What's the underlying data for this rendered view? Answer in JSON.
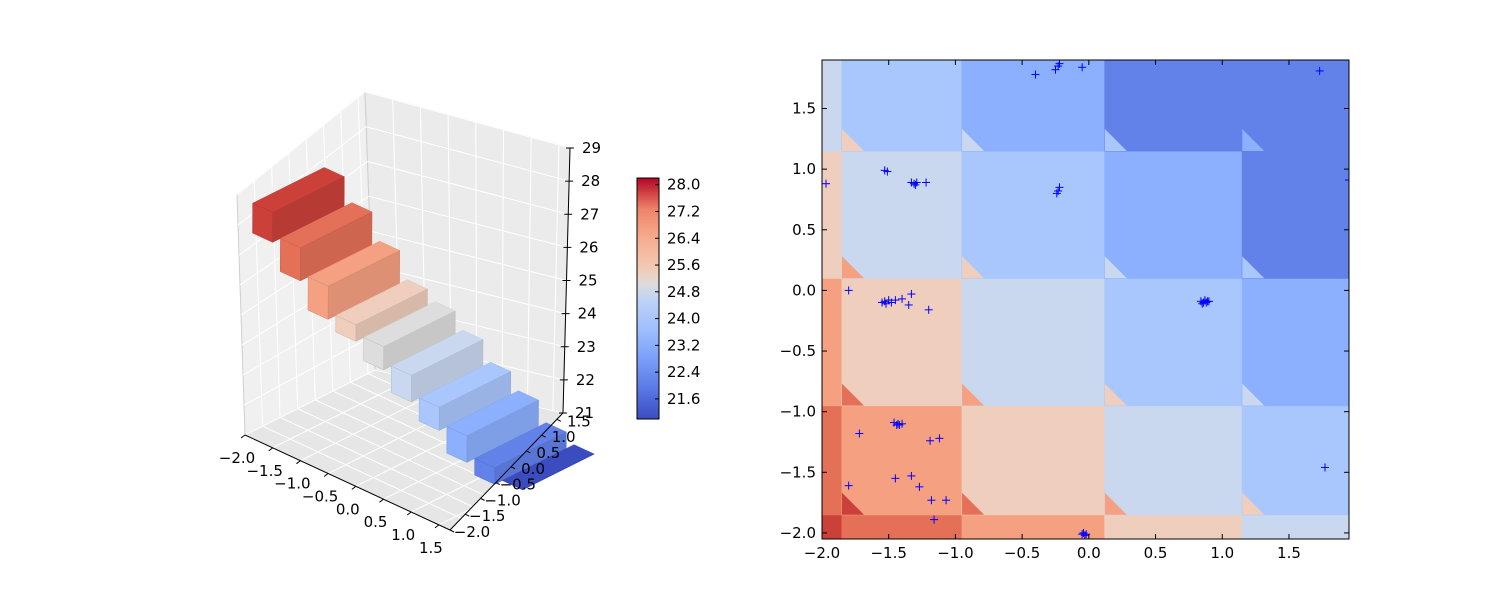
{
  "chart_data": [
    {
      "type": "surface3d",
      "title": "",
      "xlabel": "",
      "ylabel": "",
      "zlabel": "",
      "x_ticks": [
        "−2.0",
        "−1.5",
        "−1.0",
        "−0.5",
        "0.0",
        "0.5",
        "1.0",
        "1.5"
      ],
      "y_ticks": [
        "−2.0",
        "−1.5",
        "−1.0",
        "−0.5",
        "0.0",
        "0.5",
        "1.0",
        "1.5"
      ],
      "z_ticks": [
        "21",
        "22",
        "23",
        "24",
        "25",
        "26",
        "27",
        "28",
        "29"
      ],
      "zlim": [
        21,
        29
      ],
      "colormap": "coolwarm",
      "colorbar": {
        "ticks": [
          "28.0",
          "27.2",
          "26.4",
          "25.6",
          "24.8",
          "24.0",
          "23.2",
          "22.4",
          "21.6"
        ],
        "range": [
          21.0,
          28.2
        ]
      },
      "step_levels": [
        {
          "z": 27.9,
          "color": "#cc403a"
        },
        {
          "z": 27.0,
          "color": "#e57058"
        },
        {
          "z": 26.0,
          "color": "#f5a081"
        },
        {
          "z": 25.0,
          "color": "#efcebd"
        },
        {
          "z": 24.5,
          "color": "#dddddd"
        },
        {
          "z": 23.8,
          "color": "#cad8ef"
        },
        {
          "z": 23.0,
          "color": "#aac7fd"
        },
        {
          "z": 22.3,
          "color": "#8caffe"
        },
        {
          "z": 21.5,
          "color": "#6282ea"
        },
        {
          "z": 21.0,
          "color": "#3b4cc0"
        }
      ]
    },
    {
      "type": "heatmap",
      "title": "",
      "xlabel": "",
      "ylabel": "",
      "xlim": [
        -2.0,
        1.95
      ],
      "ylim": [
        -2.05,
        1.9
      ],
      "x_ticks": [
        "−2.0",
        "−1.5",
        "−1.0",
        "−0.5",
        "0.0",
        "0.5",
        "1.0",
        "1.5"
      ],
      "y_ticks": [
        "−2.0",
        "−1.5",
        "−1.0",
        "−0.5",
        "0.0",
        "0.5",
        "1.0",
        "1.5"
      ],
      "x_edges": [
        -2.0,
        -1.85,
        -0.95,
        0.12,
        1.15,
        1.95
      ],
      "y_edges": [
        -2.05,
        -1.85,
        -0.95,
        0.1,
        1.15,
        1.9
      ],
      "region_colors": [
        [
          "#cc403a",
          "#e57058",
          "#f5a081",
          "#efcebd",
          "#cad8ef"
        ],
        [
          "#e57058",
          "#f5a081",
          "#efcebd",
          "#cad8ef",
          "#aac7fd"
        ],
        [
          "#f5a081",
          "#efcebd",
          "#cad8ef",
          "#aac7fd",
          "#8caffe"
        ],
        [
          "#efcebd",
          "#cad8ef",
          "#aac7fd",
          "#8caffe",
          "#6282ea"
        ],
        [
          "#cad8ef",
          "#aac7fd",
          "#8caffe",
          "#6282ea",
          "#6282ea"
        ]
      ],
      "marker_color": "#0000ff",
      "points": [
        [
          -0.4,
          1.78
        ],
        [
          -0.25,
          1.82
        ],
        [
          -0.23,
          1.85
        ],
        [
          -0.22,
          1.87
        ],
        [
          -0.05,
          1.84
        ],
        [
          1.73,
          1.81
        ],
        [
          -1.53,
          0.99
        ],
        [
          -1.51,
          0.98
        ],
        [
          -1.33,
          0.89
        ],
        [
          -1.31,
          0.88
        ],
        [
          -1.29,
          0.89
        ],
        [
          -1.3,
          0.87
        ],
        [
          -1.22,
          0.89
        ],
        [
          -0.24,
          0.8
        ],
        [
          -0.23,
          0.82
        ],
        [
          -0.22,
          0.85
        ],
        [
          -1.97,
          0.88
        ],
        [
          1.95,
          0.91
        ],
        [
          -1.8,
          0.0
        ],
        [
          -1.55,
          -0.1
        ],
        [
          -1.53,
          -0.09
        ],
        [
          -1.52,
          -0.11
        ],
        [
          -1.5,
          -0.08
        ],
        [
          -1.48,
          -0.1
        ],
        [
          -1.45,
          -0.08
        ],
        [
          -1.4,
          -0.07
        ],
        [
          -1.35,
          -0.12
        ],
        [
          -1.33,
          -0.03
        ],
        [
          -1.2,
          -0.16
        ],
        [
          0.84,
          -0.09
        ],
        [
          0.86,
          -0.1
        ],
        [
          0.87,
          -0.08
        ],
        [
          0.88,
          -0.1
        ],
        [
          0.89,
          -0.09
        ],
        [
          0.9,
          -0.09
        ],
        [
          0.85,
          -0.11
        ],
        [
          -1.46,
          -1.09
        ],
        [
          -1.44,
          -1.11
        ],
        [
          -1.43,
          -1.1
        ],
        [
          -1.42,
          -1.11
        ],
        [
          -1.4,
          -1.1
        ],
        [
          -1.72,
          -1.18
        ],
        [
          -1.19,
          -1.24
        ],
        [
          -1.12,
          -1.22
        ],
        [
          -1.8,
          -1.61
        ],
        [
          -1.45,
          -1.55
        ],
        [
          -1.33,
          -1.53
        ],
        [
          -1.27,
          -1.62
        ],
        [
          -1.18,
          -1.73
        ],
        [
          -1.07,
          -1.73
        ],
        [
          -1.16,
          -1.89
        ],
        [
          -0.05,
          -2.01
        ],
        [
          -0.04,
          -2.0
        ],
        [
          -0.03,
          -2.02
        ],
        [
          -0.02,
          -2.01
        ],
        [
          1.77,
          -1.46
        ]
      ]
    }
  ]
}
